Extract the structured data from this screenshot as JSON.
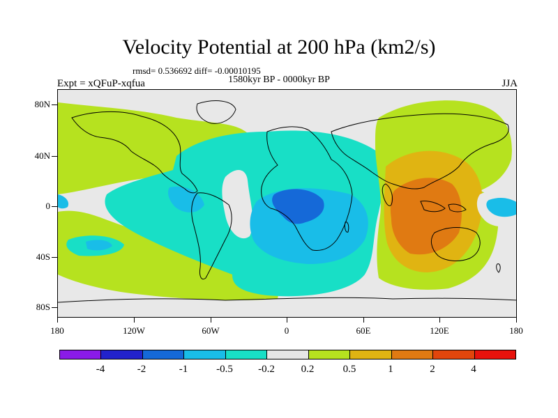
{
  "title": "Velocity Potential at 200 hPa (km2/s)",
  "stats": "rmsd= 0.536692 diff= -0.00010195",
  "period": "1580kyr BP - 0000kyr BP",
  "experiment": "Expt = xQFuP-xqfua",
  "season": "JJA",
  "lat_labels": [
    "80N",
    "40N",
    "0",
    "40S",
    "80S"
  ],
  "lon_labels": [
    "180",
    "120W",
    "60W",
    "0",
    "60E",
    "120E",
    "180"
  ],
  "colorbar": {
    "colors": [
      "#8a1be8",
      "#2222cc",
      "#1569d8",
      "#19bde8",
      "#18dfc6",
      "#e6e6e6",
      "#b6e21f",
      "#e0b412",
      "#e07a12",
      "#e2460c",
      "#e8120c"
    ],
    "labels": [
      "-4",
      "-2",
      "-1",
      "-0.5",
      "-0.2",
      "0.2",
      "0.5",
      "1",
      "2",
      "4"
    ]
  },
  "map_colors": {
    "ocean_neutral": "#e8e8e8",
    "coast": "#000000"
  }
}
